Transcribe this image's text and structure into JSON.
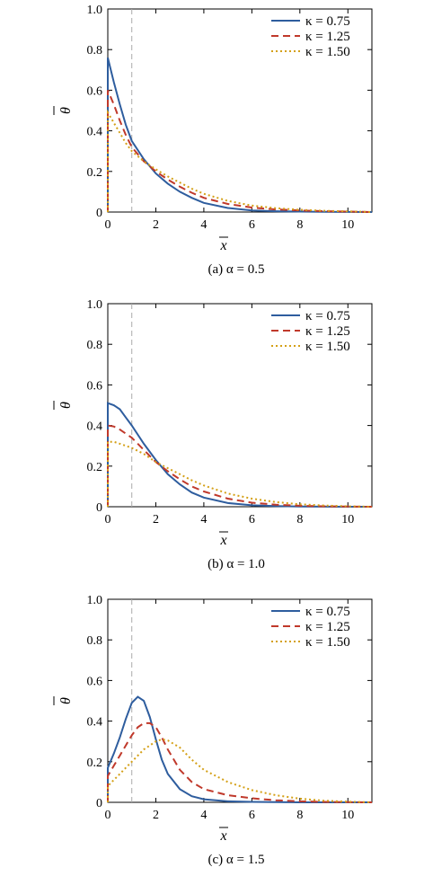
{
  "chart_data": [
    {
      "type": "line",
      "caption": "(a) α = 0.5",
      "xlabel": "x",
      "ylabel": "θ",
      "xlim": [
        0,
        11
      ],
      "ylim": [
        0,
        1.0
      ],
      "xticks": [
        "0",
        "2",
        "4",
        "6",
        "8",
        "10"
      ],
      "yticks": [
        "0",
        "0.2",
        "0.4",
        "0.6",
        "0.8",
        "1.0"
      ],
      "vline_x": 1.0,
      "legend_position": "top-right",
      "series": [
        {
          "name": "κ = 0.75",
          "color": "#2e5d9e",
          "style": "solid",
          "x": [
            0,
            0.25,
            0.5,
            0.75,
            1.0,
            1.5,
            2.0,
            2.5,
            3.0,
            3.5,
            4.0,
            5.0,
            6.0,
            7.0,
            8.0,
            9.0,
            10.0,
            11.0
          ],
          "y": [
            0.76,
            0.64,
            0.53,
            0.43,
            0.35,
            0.26,
            0.19,
            0.14,
            0.1,
            0.07,
            0.045,
            0.02,
            0.008,
            0.004,
            0.002,
            0.001,
            0.0005,
            0.0
          ]
        },
        {
          "name": "κ = 1.25",
          "color": "#c0392b",
          "style": "dashed",
          "x": [
            0,
            0.25,
            0.5,
            0.75,
            1.0,
            1.5,
            2.0,
            2.5,
            3.0,
            3.5,
            4.0,
            5.0,
            6.0,
            7.0,
            8.0,
            9.0,
            10.0,
            11.0
          ],
          "y": [
            0.6,
            0.53,
            0.45,
            0.38,
            0.32,
            0.25,
            0.2,
            0.16,
            0.125,
            0.095,
            0.07,
            0.04,
            0.022,
            0.013,
            0.008,
            0.004,
            0.002,
            0.0
          ]
        },
        {
          "name": "κ = 1.50",
          "color": "#d4a017",
          "style": "dotted",
          "x": [
            0,
            0.25,
            0.5,
            0.75,
            1.0,
            1.5,
            2.0,
            2.5,
            3.0,
            3.5,
            4.0,
            5.0,
            6.0,
            7.0,
            8.0,
            9.0,
            10.0,
            11.0
          ],
          "y": [
            0.49,
            0.44,
            0.39,
            0.34,
            0.3,
            0.25,
            0.21,
            0.175,
            0.145,
            0.115,
            0.09,
            0.055,
            0.032,
            0.019,
            0.011,
            0.006,
            0.003,
            0.0
          ]
        }
      ]
    },
    {
      "type": "line",
      "caption": "(b) α = 1.0",
      "xlabel": "x",
      "ylabel": "θ",
      "xlim": [
        0,
        11
      ],
      "ylim": [
        0,
        1.0
      ],
      "xticks": [
        "0",
        "2",
        "4",
        "6",
        "8",
        "10"
      ],
      "yticks": [
        "0",
        "0.2",
        "0.4",
        "0.6",
        "0.8",
        "1.0"
      ],
      "vline_x": 1.0,
      "legend_position": "top-right",
      "series": [
        {
          "name": "κ = 0.75",
          "color": "#2e5d9e",
          "style": "solid",
          "x": [
            0,
            0.25,
            0.5,
            0.75,
            1.0,
            1.5,
            2.0,
            2.5,
            3.0,
            3.5,
            4.0,
            5.0,
            6.0,
            7.0,
            8.0,
            9.0,
            10.0,
            11.0
          ],
          "y": [
            0.51,
            0.5,
            0.48,
            0.44,
            0.4,
            0.31,
            0.23,
            0.16,
            0.11,
            0.07,
            0.045,
            0.018,
            0.007,
            0.003,
            0.001,
            0.0005,
            0.0,
            0.0
          ]
        },
        {
          "name": "κ = 1.25",
          "color": "#c0392b",
          "style": "dashed",
          "x": [
            0,
            0.25,
            0.5,
            0.75,
            1.0,
            1.5,
            2.0,
            2.5,
            3.0,
            3.5,
            4.0,
            5.0,
            6.0,
            7.0,
            8.0,
            9.0,
            10.0,
            11.0
          ],
          "y": [
            0.4,
            0.395,
            0.38,
            0.36,
            0.34,
            0.28,
            0.22,
            0.175,
            0.135,
            0.1,
            0.075,
            0.04,
            0.02,
            0.01,
            0.005,
            0.002,
            0.001,
            0.0
          ]
        },
        {
          "name": "κ = 1.50",
          "color": "#d4a017",
          "style": "dotted",
          "x": [
            0,
            0.25,
            0.5,
            0.75,
            1.0,
            1.5,
            2.0,
            2.5,
            3.0,
            3.5,
            4.0,
            5.0,
            6.0,
            7.0,
            8.0,
            9.0,
            10.0,
            11.0
          ],
          "y": [
            0.32,
            0.32,
            0.31,
            0.3,
            0.29,
            0.26,
            0.22,
            0.19,
            0.16,
            0.13,
            0.105,
            0.065,
            0.04,
            0.023,
            0.012,
            0.006,
            0.002,
            0.0
          ]
        }
      ]
    },
    {
      "type": "line",
      "caption": "(c) α = 1.5",
      "xlabel": "x",
      "ylabel": "θ",
      "xlim": [
        0,
        11
      ],
      "ylim": [
        0,
        1.0
      ],
      "xticks": [
        "0",
        "2",
        "4",
        "6",
        "8",
        "10"
      ],
      "yticks": [
        "0",
        "0.2",
        "0.4",
        "0.6",
        "0.8",
        "1.0"
      ],
      "vline_x": 1.0,
      "legend_position": "top-right",
      "series": [
        {
          "name": "κ = 0.75",
          "color": "#2e5d9e",
          "style": "solid",
          "x": [
            0,
            0.25,
            0.5,
            0.75,
            1.0,
            1.25,
            1.5,
            1.75,
            2.0,
            2.25,
            2.5,
            3.0,
            3.5,
            4.0,
            5.0,
            6.0,
            7.0,
            8.0,
            9.0,
            10.0,
            11.0
          ],
          "y": [
            0.17,
            0.24,
            0.32,
            0.41,
            0.49,
            0.52,
            0.5,
            0.42,
            0.31,
            0.21,
            0.14,
            0.065,
            0.03,
            0.015,
            0.005,
            0.002,
            0.001,
            0.0,
            0.0,
            0.0,
            0.0
          ]
        },
        {
          "name": "κ = 1.25",
          "color": "#c0392b",
          "style": "dashed",
          "x": [
            0,
            0.25,
            0.5,
            0.75,
            1.0,
            1.25,
            1.5,
            1.75,
            2.0,
            2.25,
            2.5,
            3.0,
            3.5,
            4.0,
            5.0,
            6.0,
            7.0,
            8.0,
            9.0,
            10.0,
            11.0
          ],
          "y": [
            0.13,
            0.18,
            0.23,
            0.28,
            0.33,
            0.37,
            0.39,
            0.39,
            0.37,
            0.32,
            0.26,
            0.16,
            0.1,
            0.065,
            0.035,
            0.02,
            0.01,
            0.005,
            0.002,
            0.001,
            0.0
          ]
        },
        {
          "name": "κ = 1.50",
          "color": "#d4a017",
          "style": "dotted",
          "x": [
            0,
            0.25,
            0.5,
            0.75,
            1.0,
            1.25,
            1.5,
            1.75,
            2.0,
            2.25,
            2.5,
            3.0,
            3.5,
            4.0,
            5.0,
            6.0,
            7.0,
            8.0,
            9.0,
            10.0,
            11.0
          ],
          "y": [
            0.08,
            0.11,
            0.14,
            0.17,
            0.2,
            0.23,
            0.26,
            0.28,
            0.3,
            0.31,
            0.305,
            0.27,
            0.21,
            0.16,
            0.1,
            0.06,
            0.035,
            0.018,
            0.008,
            0.003,
            0.0
          ]
        }
      ]
    }
  ]
}
